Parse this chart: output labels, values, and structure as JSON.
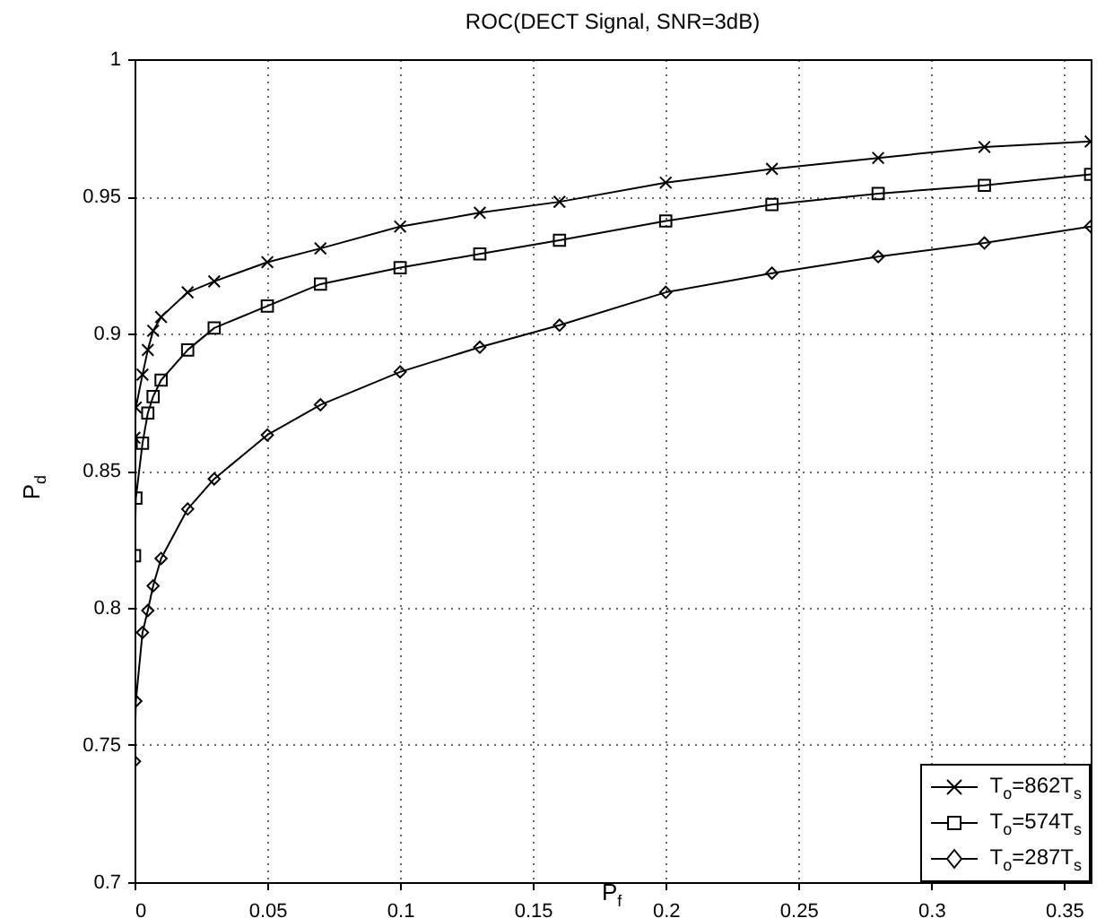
{
  "chart_data": {
    "type": "line",
    "title": "ROC(DECT Signal, SNR=3dB)",
    "xlabel": "P$_{f}$",
    "ylabel": "P$_{d}$",
    "xlim": [
      0,
      0.36
    ],
    "ylim": [
      0.7,
      1
    ],
    "xticks": [
      0,
      0.05,
      0.1,
      0.15,
      0.2,
      0.25,
      0.3,
      0.35
    ],
    "yticks": [
      0.7,
      0.75,
      0.8,
      0.85,
      0.9,
      0.95,
      1
    ],
    "grid": true,
    "legend": "bottom right",
    "line_style": "solid",
    "series": [
      {
        "name": "T$_{o}$=862T$_{s}$",
        "color": "#000000",
        "marker": "cross",
        "x": [
          0,
          0.0005,
          0.003,
          0.005,
          0.007,
          0.01,
          0.02,
          0.03,
          0.05,
          0.07,
          0.1,
          0.13,
          0.16,
          0.2,
          0.24,
          0.28,
          0.32,
          0.36
        ],
        "values": [
          0.862,
          0.873,
          0.885,
          0.894,
          0.901,
          0.906,
          0.915,
          0.919,
          0.926,
          0.931,
          0.939,
          0.944,
          0.948,
          0.955,
          0.96,
          0.964,
          0.968,
          0.97
        ]
      },
      {
        "name": "T$_{o}$=574T$_{s}$",
        "color": "#000000",
        "marker": "square",
        "x": [
          0,
          0.0005,
          0.003,
          0.005,
          0.007,
          0.01,
          0.02,
          0.03,
          0.05,
          0.07,
          0.1,
          0.13,
          0.16,
          0.2,
          0.24,
          0.28,
          0.32,
          0.36
        ],
        "values": [
          0.819,
          0.84,
          0.86,
          0.871,
          0.877,
          0.883,
          0.894,
          0.902,
          0.91,
          0.918,
          0.924,
          0.929,
          0.934,
          0.941,
          0.947,
          0.951,
          0.954,
          0.958
        ]
      },
      {
        "name": "T$_{o}$=287T$_{s}$",
        "color": "#000000",
        "marker": "diamond",
        "x": [
          0,
          0.0005,
          0.003,
          0.005,
          0.007,
          0.01,
          0.02,
          0.03,
          0.05,
          0.07,
          0.1,
          0.13,
          0.16,
          0.2,
          0.24,
          0.28,
          0.32,
          0.36
        ],
        "values": [
          0.744,
          0.766,
          0.791,
          0.799,
          0.808,
          0.818,
          0.836,
          0.847,
          0.863,
          0.874,
          0.886,
          0.895,
          0.903,
          0.915,
          0.922,
          0.928,
          0.933,
          0.939
        ]
      }
    ]
  }
}
